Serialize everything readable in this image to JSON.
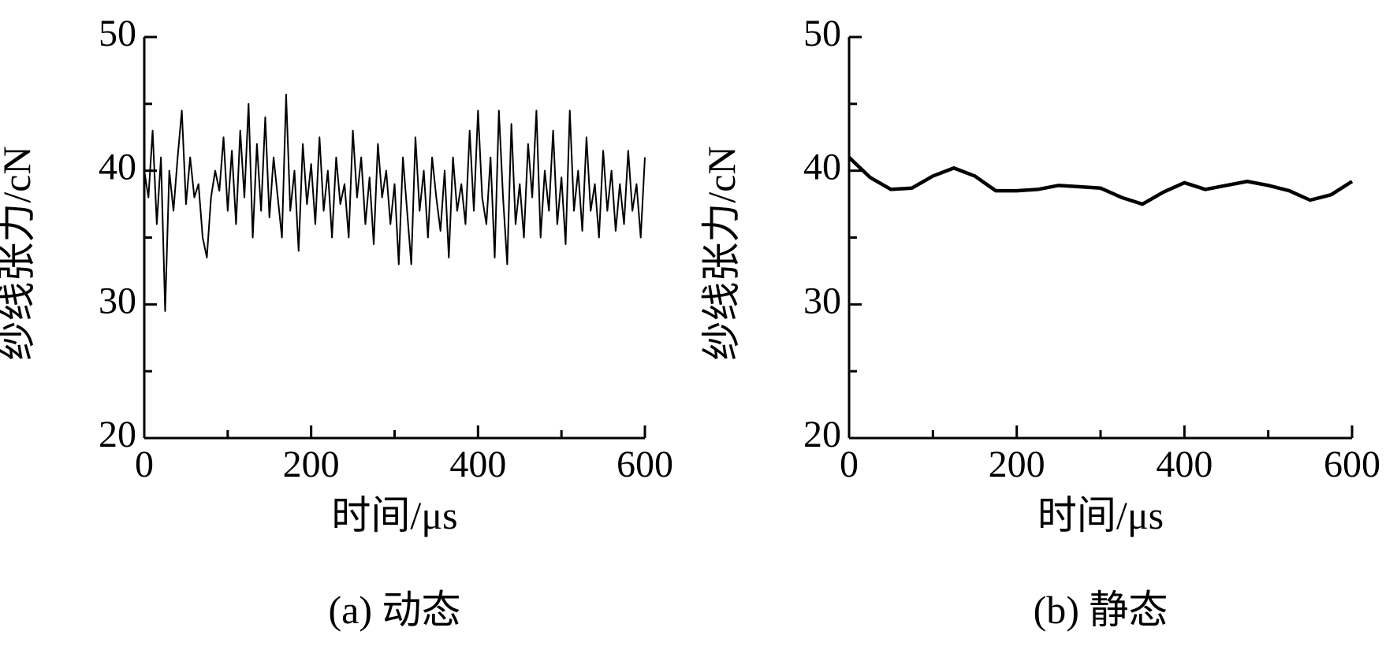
{
  "chart_data": [
    {
      "type": "line",
      "caption": "(a)  动态",
      "xlabel": "时间/μs",
      "ylabel": "纱线张力/cN",
      "xlim": [
        0,
        600
      ],
      "xticks": [
        0,
        200,
        400,
        600
      ],
      "xticks_minor": [
        100,
        300,
        500
      ],
      "ylim": [
        20,
        50
      ],
      "yticks": [
        20,
        30,
        40,
        50
      ],
      "yticks_minor": [
        25,
        35,
        45
      ],
      "series": [
        {
          "color": "#000000",
          "x": [
            0,
            5,
            10,
            15,
            20,
            25,
            30,
            35,
            40,
            45,
            50,
            55,
            60,
            65,
            70,
            75,
            80,
            85,
            90,
            95,
            100,
            105,
            110,
            115,
            120,
            125,
            130,
            135,
            140,
            145,
            150,
            155,
            160,
            165,
            170,
            175,
            180,
            185,
            190,
            195,
            200,
            205,
            210,
            215,
            220,
            225,
            230,
            235,
            240,
            245,
            250,
            255,
            260,
            265,
            270,
            275,
            280,
            285,
            290,
            295,
            300,
            305,
            310,
            315,
            320,
            325,
            330,
            335,
            340,
            345,
            350,
            355,
            360,
            365,
            370,
            375,
            380,
            385,
            390,
            395,
            400,
            405,
            410,
            415,
            420,
            425,
            430,
            435,
            440,
            445,
            450,
            455,
            460,
            465,
            470,
            475,
            480,
            485,
            490,
            495,
            500,
            505,
            510,
            515,
            520,
            525,
            530,
            535,
            540,
            545,
            550,
            555,
            560,
            565,
            570,
            575,
            580,
            585,
            590,
            595,
            600
          ],
          "values": [
            40,
            38,
            43,
            36,
            41,
            29.5,
            40,
            37,
            41,
            44.5,
            37.5,
            41,
            38,
            39,
            35,
            33.5,
            38,
            40,
            38.5,
            42.5,
            37,
            41.5,
            36,
            43,
            38,
            45,
            35,
            42,
            37,
            44,
            36.5,
            41,
            38,
            35,
            45.7,
            37,
            40,
            34,
            42,
            37.5,
            40.5,
            36,
            42.5,
            37,
            40,
            35,
            41,
            37.5,
            39,
            35,
            43,
            38,
            41,
            36,
            39.5,
            34.5,
            42,
            38,
            40,
            36,
            39,
            33,
            41,
            37,
            33,
            42.5,
            37,
            40,
            35,
            41,
            38,
            35.5,
            40,
            33.5,
            41,
            37,
            39,
            36,
            43,
            37,
            44.5,
            38,
            36,
            41,
            33.5,
            44.5,
            38,
            33,
            43.5,
            36,
            39,
            35,
            42,
            38,
            44.5,
            35,
            40,
            37,
            43,
            36,
            39.5,
            34.5,
            44.5,
            37,
            40,
            35.5,
            42.5,
            37,
            39,
            35,
            41.5,
            37,
            40,
            35.5,
            39,
            36,
            41.5,
            37,
            39,
            35,
            41
          ]
        }
      ]
    },
    {
      "type": "line",
      "caption": "(b)  静态",
      "xlabel": "时间/μs",
      "ylabel": "纱线张力/cN",
      "xlim": [
        0,
        600
      ],
      "xticks": [
        0,
        200,
        400,
        600
      ],
      "xticks_minor": [
        100,
        300,
        500
      ],
      "ylim": [
        20,
        50
      ],
      "yticks": [
        20,
        30,
        40,
        50
      ],
      "yticks_minor": [
        25,
        35,
        45
      ],
      "series": [
        {
          "color": "#000000",
          "x": [
            0,
            25,
            50,
            75,
            100,
            125,
            150,
            175,
            200,
            225,
            250,
            275,
            300,
            325,
            350,
            375,
            400,
            425,
            450,
            475,
            500,
            525,
            550,
            575,
            600
          ],
          "values": [
            41,
            39.5,
            38.6,
            38.7,
            39.6,
            40.2,
            39.6,
            38.5,
            38.5,
            38.6,
            38.9,
            38.8,
            38.7,
            38.0,
            37.5,
            38.4,
            39.1,
            38.6,
            38.9,
            39.2,
            38.9,
            38.5,
            37.8,
            38.2,
            39.2
          ]
        }
      ]
    }
  ]
}
